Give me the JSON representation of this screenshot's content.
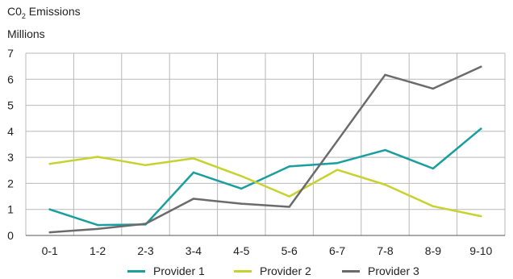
{
  "chart_data": {
    "type": "line",
    "ylabel": "C0₂ Emissions Millions",
    "ylabel_parts": {
      "prefix": "C0",
      "subscript": "2",
      "suffix": " Emissions",
      "line2": "Millions"
    },
    "xlabel": "",
    "categories": [
      "0-1",
      "1-2",
      "2-3",
      "3-4",
      "4-5",
      "5-6",
      "6-7",
      "7-8",
      "8-9",
      "9-10"
    ],
    "ylim": [
      0,
      7
    ],
    "yticks": [
      0,
      1,
      2,
      3,
      4,
      5,
      6,
      7
    ],
    "grid": true,
    "legend_position": "bottom",
    "series": [
      {
        "name": "Provider 1",
        "color": "#1a9e9e",
        "values": [
          1.0,
          0.4,
          0.42,
          2.42,
          1.8,
          2.65,
          2.78,
          3.28,
          2.57,
          4.1
        ]
      },
      {
        "name": "Provider 2",
        "color": "#c8d22f",
        "values": [
          2.75,
          3.02,
          2.7,
          2.96,
          2.28,
          1.5,
          2.52,
          1.95,
          1.12,
          0.74
        ]
      },
      {
        "name": "Provider 3",
        "color": "#6b6b6b",
        "values": [
          0.12,
          0.25,
          0.45,
          1.41,
          1.22,
          1.1,
          3.63,
          6.17,
          5.64,
          6.48
        ]
      }
    ]
  }
}
